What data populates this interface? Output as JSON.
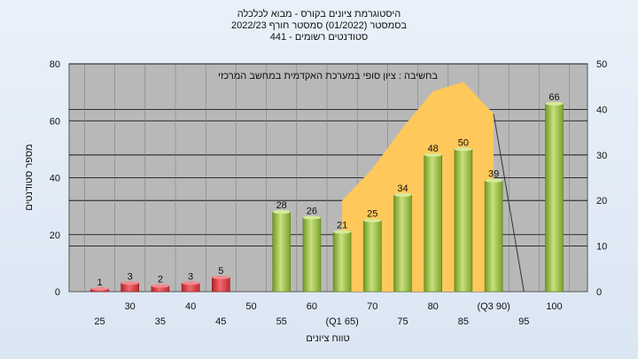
{
  "title_lines": [
    "היסטוגרמת ציונים בקורס - מבוא לכלכלה",
    "בסמסטר  (01/2022)  סמסטר חורף 2022/23",
    "סטודנטים רשומים - 441"
  ],
  "colors": {
    "plot_bg": "#b8b8b8",
    "grid": "#000000",
    "red_bar": "#d9363e",
    "green_bar": "#9bc24a",
    "area": "#ffc85a"
  },
  "chart_data": {
    "type": "bar",
    "xlabel": "טווח ציונים",
    "ylabel": "מספר סטודנטים",
    "ylim": [
      0,
      80
    ],
    "y2lim": [
      0,
      50
    ],
    "yticks": [
      0,
      20,
      40,
      60,
      80
    ],
    "y2ticks": [
      0,
      10,
      20,
      30,
      40,
      50
    ],
    "grid": true,
    "categories": [
      "25",
      "30",
      "35",
      "40",
      "45",
      "50",
      "55",
      "60",
      "(Q1 65)",
      "70",
      "75",
      "80",
      "85",
      "(Q3 90)",
      "95",
      "100"
    ],
    "series": [
      {
        "values": [
          1,
          3,
          2,
          3,
          5,
          0,
          28,
          26,
          21,
          25,
          34,
          48,
          50,
          39,
          0,
          66
        ],
        "labels": [
          "1",
          "3",
          "2",
          "3",
          "5",
          "",
          "28",
          "26",
          "21",
          "25",
          "34",
          "48",
          "50",
          "39",
          "",
          "66"
        ],
        "bar_colors": [
          "red",
          "red",
          "red",
          "red",
          "red",
          "red",
          "green",
          "green",
          "green",
          "green",
          "green",
          "green",
          "green",
          "green",
          "green",
          "green"
        ]
      }
    ],
    "area": {
      "label": "בחשיבה : ציון סופי במערכת האקדמית במחשב המרכזי",
      "x_start_index": 8,
      "y2_values": [
        20,
        27,
        36,
        44,
        46,
        39
      ],
      "drop_to_index": 14
    }
  }
}
